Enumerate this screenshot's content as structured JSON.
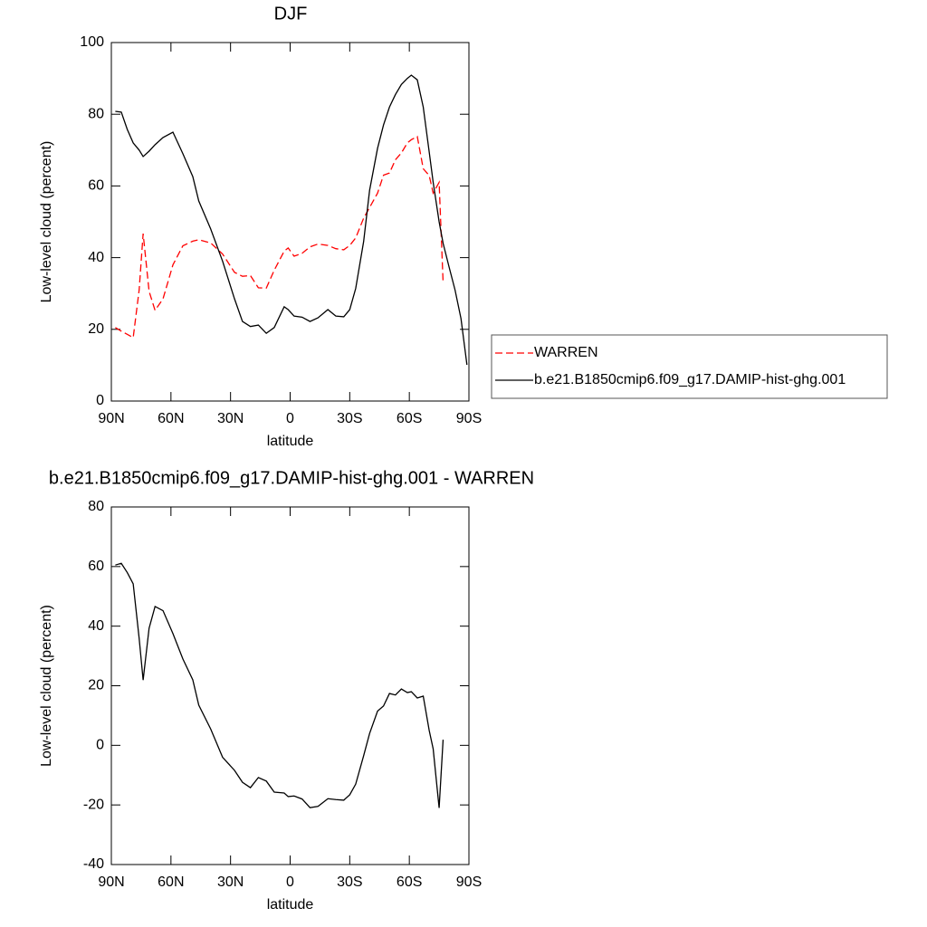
{
  "chart_data": [
    {
      "type": "line",
      "title": "DJF",
      "xlabel": "latitude",
      "ylabel": "Low-level cloud (percent)",
      "x": [
        88,
        85,
        82,
        79,
        76,
        74,
        71,
        68,
        64,
        59,
        54,
        49,
        46,
        40,
        34,
        28,
        24,
        20,
        16,
        12,
        8,
        3,
        1,
        -2,
        -6,
        -10,
        -14,
        -19,
        -23,
        -27,
        -30,
        -33,
        -37,
        -40,
        -44,
        -47,
        -50,
        -53,
        -56,
        -59,
        -61,
        -64,
        -67,
        -70,
        -72,
        -75,
        -77,
        -80,
        -83,
        -86,
        -89
      ],
      "series": [
        {
          "name": "WARREN",
          "color": "#ff0000",
          "style": "dashed",
          "values": [
            20.5,
            19.5,
            18.6,
            17.7,
            31,
            46.7,
            30.6,
            25.3,
            28.5,
            38,
            43.3,
            44.6,
            45,
            44.1,
            41,
            35.9,
            34.8,
            35,
            31.6,
            31.5,
            36.5,
            41.8,
            42.7,
            40.4,
            41.2,
            43,
            43.8,
            43.4,
            42.5,
            42.2,
            43.4,
            45.5,
            51,
            54,
            58,
            63,
            63.6,
            67.3,
            69.2,
            72,
            72.9,
            73.8,
            64.8,
            62.9,
            58,
            61,
            33.1,
            null,
            null,
            null,
            null
          ]
        },
        {
          "name": "b.e21.B1850cmip6.f09_g17.DAMIP-hist-ghg.001",
          "color": "#000000",
          "style": "solid",
          "values": [
            80.8,
            80.6,
            75.8,
            72,
            70,
            68.2,
            69.7,
            71.5,
            73.5,
            75,
            69,
            62.6,
            55.8,
            48,
            39,
            28.5,
            22.2,
            20.8,
            21.2,
            18.9,
            20.5,
            26.3,
            25.5,
            23.7,
            23.4,
            22.2,
            23.2,
            25.5,
            23.7,
            23.5,
            25.5,
            31.4,
            44.5,
            58.8,
            70.5,
            77,
            82,
            85.5,
            88.3,
            90,
            90.9,
            89.6,
            82,
            69.5,
            61,
            50,
            44,
            37.4,
            31,
            23,
            10.1
          ]
        }
      ],
      "xlim": [
        90,
        -90
      ],
      "xticks": [
        {
          "value": 90,
          "label": "90N"
        },
        {
          "value": 60,
          "label": "60N"
        },
        {
          "value": 30,
          "label": "30N"
        },
        0,
        {
          "value": -30,
          "label": "30S"
        },
        {
          "value": -60,
          "label": "60S"
        },
        {
          "value": -90,
          "label": "90S"
        }
      ],
      "ylim": [
        0,
        100
      ],
      "yticks": [
        0,
        20,
        40,
        60,
        80,
        100
      ],
      "legend": "right"
    },
    {
      "type": "line",
      "title": "b.e21.B1850cmip6.f09_g17.DAMIP-hist-ghg.001 - WARREN",
      "xlabel": "latitude",
      "ylabel": "Low-level cloud (percent)",
      "x": [
        88,
        85,
        82,
        79,
        76,
        74,
        71,
        68,
        64,
        59,
        54,
        49,
        46,
        40,
        34,
        28,
        24,
        20,
        16,
        12,
        8,
        3,
        1,
        -2,
        -6,
        -10,
        -14,
        -19,
        -23,
        -27,
        -30,
        -33,
        -37,
        -40,
        -44,
        -47,
        -50,
        -53,
        -56,
        -59,
        -61,
        -64,
        -67,
        -70,
        -72,
        -75,
        -77
      ],
      "series": [
        {
          "color": "#000000",
          "style": "solid",
          "values": [
            60.5,
            61.1,
            58,
            54.2,
            35.9,
            21.9,
            39.3,
            46.6,
            45.2,
            37.5,
            29,
            22,
            13.5,
            5.5,
            -4,
            -8.4,
            -12.4,
            -14.2,
            -10.8,
            -12,
            -15.7,
            -16,
            -17.2,
            -17,
            -18,
            -20.9,
            -20.5,
            -17.9,
            -18.2,
            -18.4,
            -16.6,
            -13,
            -3.5,
            4,
            11.5,
            13.2,
            17.4,
            16.9,
            18.9,
            17.7,
            18,
            15.9,
            16.5,
            5,
            -1.2,
            -21,
            1.9
          ]
        }
      ],
      "xlim": [
        90,
        -90
      ],
      "xticks": [
        {
          "value": 90,
          "label": "90N"
        },
        {
          "value": 60,
          "label": "60N"
        },
        {
          "value": 30,
          "label": "30N"
        },
        0,
        {
          "value": -30,
          "label": "30S"
        },
        {
          "value": -60,
          "label": "60S"
        },
        {
          "value": -90,
          "label": "90S"
        }
      ],
      "ylim": [
        -40,
        80
      ],
      "yticks": [
        -40,
        -20,
        0,
        20,
        40,
        60,
        80
      ]
    }
  ]
}
